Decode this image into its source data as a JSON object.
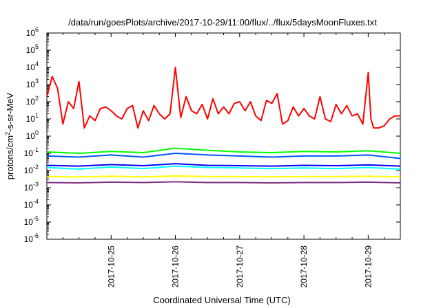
{
  "chart_data": {
    "type": "line",
    "title": "/data/run/goesPlots/archive/2017-10-29/11:00/flux/../flux/5daysMoonFluxes.txt",
    "xlabel": "Coordinated Universal Time (UTC)",
    "ylabel": {
      "base": "protons/cm",
      "sup": "2",
      "rest": "-s-sr-MeV"
    },
    "y_scale": "log",
    "ylim": [
      1e-06,
      1000000.0
    ],
    "y_ticks": [
      {
        "value": 1e-06,
        "exp": "-6"
      },
      {
        "value": 1e-05,
        "exp": "-5"
      },
      {
        "value": 0.0001,
        "exp": "-4"
      },
      {
        "value": 0.001,
        "exp": "-3"
      },
      {
        "value": 0.01,
        "exp": "-2"
      },
      {
        "value": 0.1,
        "exp": "-1"
      },
      {
        "value": 1,
        "exp": "0"
      },
      {
        "value": 10,
        "exp": "1"
      },
      {
        "value": 100,
        "exp": "2"
      },
      {
        "value": 1000,
        "exp": "3"
      },
      {
        "value": 10000,
        "exp": "4"
      },
      {
        "value": 100000,
        "exp": "5"
      },
      {
        "value": 1000000,
        "exp": "6"
      }
    ],
    "x_ticks": [
      "2017-10-25",
      "2017-10-26",
      "2017-10-27",
      "2017-10-28",
      "2017-10-29"
    ],
    "xlim": [
      "2017-10-24T00:00",
      "2017-10-29T12:00"
    ],
    "grid": false,
    "legend": "none",
    "series": [
      {
        "color": "#ff0000",
        "x": [
          "2017-10-24T00:00",
          "2017-10-24T02:00",
          "2017-10-24T04:00",
          "2017-10-24T06:00",
          "2017-10-24T08:00",
          "2017-10-24T10:00",
          "2017-10-24T12:00",
          "2017-10-24T14:00",
          "2017-10-24T16:00",
          "2017-10-24T18:00",
          "2017-10-24T20:00",
          "2017-10-24T22:00",
          "2017-10-25T00:00",
          "2017-10-25T02:00",
          "2017-10-25T04:00",
          "2017-10-25T06:00",
          "2017-10-25T08:00",
          "2017-10-25T10:00",
          "2017-10-25T12:00",
          "2017-10-25T14:00",
          "2017-10-25T16:00",
          "2017-10-25T18:00",
          "2017-10-25T20:00",
          "2017-10-25T22:00",
          "2017-10-26T00:00",
          "2017-10-26T02:00",
          "2017-10-26T04:00",
          "2017-10-26T06:00",
          "2017-10-26T08:00",
          "2017-10-26T10:00",
          "2017-10-26T12:00",
          "2017-10-26T14:00",
          "2017-10-26T16:00",
          "2017-10-26T18:00",
          "2017-10-26T20:00",
          "2017-10-26T22:00",
          "2017-10-27T00:00",
          "2017-10-27T02:00",
          "2017-10-27T04:00",
          "2017-10-27T06:00",
          "2017-10-27T08:00",
          "2017-10-27T10:00",
          "2017-10-27T12:00",
          "2017-10-27T14:00",
          "2017-10-27T16:00",
          "2017-10-27T18:00",
          "2017-10-27T20:00",
          "2017-10-27T22:00",
          "2017-10-28T00:00",
          "2017-10-28T02:00",
          "2017-10-28T04:00",
          "2017-10-28T06:00",
          "2017-10-28T08:00",
          "2017-10-28T10:00",
          "2017-10-28T12:00",
          "2017-10-28T14:00",
          "2017-10-28T16:00",
          "2017-10-28T18:00",
          "2017-10-28T20:00",
          "2017-10-28T22:00",
          "2017-10-29T00:00",
          "2017-10-29T01:00",
          "2017-10-29T02:00",
          "2017-10-29T04:00",
          "2017-10-29T06:00",
          "2017-10-29T08:00",
          "2017-10-29T10:00",
          "2017-10-29T12:00"
        ],
        "y": [
          200,
          3000,
          600,
          5,
          100,
          40,
          1500,
          3,
          15,
          8,
          40,
          50,
          30,
          15,
          10,
          40,
          60,
          3,
          30,
          8,
          60,
          20,
          10,
          20,
          10000,
          12,
          200,
          30,
          20,
          70,
          10,
          150,
          20,
          50,
          20,
          80,
          100,
          30,
          100,
          15,
          8,
          120,
          80,
          300,
          5,
          8,
          50,
          15,
          40,
          15,
          10,
          200,
          10,
          7,
          70,
          20,
          60,
          15,
          20,
          5,
          5000,
          10,
          3,
          3,
          4,
          10,
          15,
          15
        ]
      },
      {
        "color": "#00ff00",
        "x": [
          "2017-10-24T00:00",
          "2017-10-24T12:00",
          "2017-10-25T00:00",
          "2017-10-25T12:00",
          "2017-10-26T00:00",
          "2017-10-26T12:00",
          "2017-10-27T00:00",
          "2017-10-27T12:00",
          "2017-10-28T00:00",
          "2017-10-28T12:00",
          "2017-10-29T00:00",
          "2017-10-29T12:00"
        ],
        "y": [
          0.12,
          0.1,
          0.13,
          0.11,
          0.2,
          0.15,
          0.12,
          0.11,
          0.13,
          0.12,
          0.14,
          0.1
        ]
      },
      {
        "color": "#0055ff",
        "x": [
          "2017-10-24T00:00",
          "2017-10-24T12:00",
          "2017-10-25T00:00",
          "2017-10-25T12:00",
          "2017-10-26T00:00",
          "2017-10-26T12:00",
          "2017-10-27T00:00",
          "2017-10-27T12:00",
          "2017-10-28T00:00",
          "2017-10-28T12:00",
          "2017-10-29T00:00",
          "2017-10-29T12:00"
        ],
        "y": [
          0.07,
          0.06,
          0.08,
          0.06,
          0.1,
          0.08,
          0.07,
          0.06,
          0.07,
          0.07,
          0.08,
          0.05
        ]
      },
      {
        "color": "#00ffff",
        "x": [
          "2017-10-24T00:00",
          "2017-10-24T12:00",
          "2017-10-25T00:00",
          "2017-10-25T12:00",
          "2017-10-26T00:00",
          "2017-10-26T12:00",
          "2017-10-27T00:00",
          "2017-10-27T12:00",
          "2017-10-28T00:00",
          "2017-10-28T12:00",
          "2017-10-29T00:00",
          "2017-10-29T12:00"
        ],
        "y": [
          0.015,
          0.012,
          0.016,
          0.013,
          0.018,
          0.015,
          0.014,
          0.013,
          0.014,
          0.013,
          0.015,
          0.012
        ]
      },
      {
        "color": "#0000ff",
        "x": [
          "2017-10-24T00:00",
          "2017-10-24T12:00",
          "2017-10-25T00:00",
          "2017-10-25T12:00",
          "2017-10-26T00:00",
          "2017-10-26T12:00",
          "2017-10-27T00:00",
          "2017-10-27T12:00",
          "2017-10-28T00:00",
          "2017-10-28T12:00",
          "2017-10-29T00:00",
          "2017-10-29T12:00"
        ],
        "y": [
          0.02,
          0.018,
          0.022,
          0.019,
          0.025,
          0.02,
          0.019,
          0.018,
          0.02,
          0.019,
          0.021,
          0.018
        ]
      },
      {
        "color": "#ffff00",
        "x": [
          "2017-10-24T00:00",
          "2017-10-24T12:00",
          "2017-10-25T00:00",
          "2017-10-25T12:00",
          "2017-10-26T00:00",
          "2017-10-26T12:00",
          "2017-10-27T00:00",
          "2017-10-27T12:00",
          "2017-10-28T00:00",
          "2017-10-28T12:00",
          "2017-10-29T00:00",
          "2017-10-29T12:00"
        ],
        "y": [
          0.0045,
          0.0042,
          0.0046,
          0.0043,
          0.0048,
          0.0045,
          0.0044,
          0.0043,
          0.0045,
          0.0044,
          0.0046,
          0.0043
        ]
      },
      {
        "color": "#803080",
        "x": [
          "2017-10-24T00:00",
          "2017-10-24T12:00",
          "2017-10-25T00:00",
          "2017-10-25T12:00",
          "2017-10-26T00:00",
          "2017-10-26T12:00",
          "2017-10-27T00:00",
          "2017-10-27T12:00",
          "2017-10-28T00:00",
          "2017-10-28T12:00",
          "2017-10-29T00:00",
          "2017-10-29T12:00"
        ],
        "y": [
          0.002,
          0.0019,
          0.0021,
          0.002,
          0.0022,
          0.002,
          0.002,
          0.0019,
          0.002,
          0.002,
          0.0021,
          0.0019
        ]
      }
    ]
  }
}
